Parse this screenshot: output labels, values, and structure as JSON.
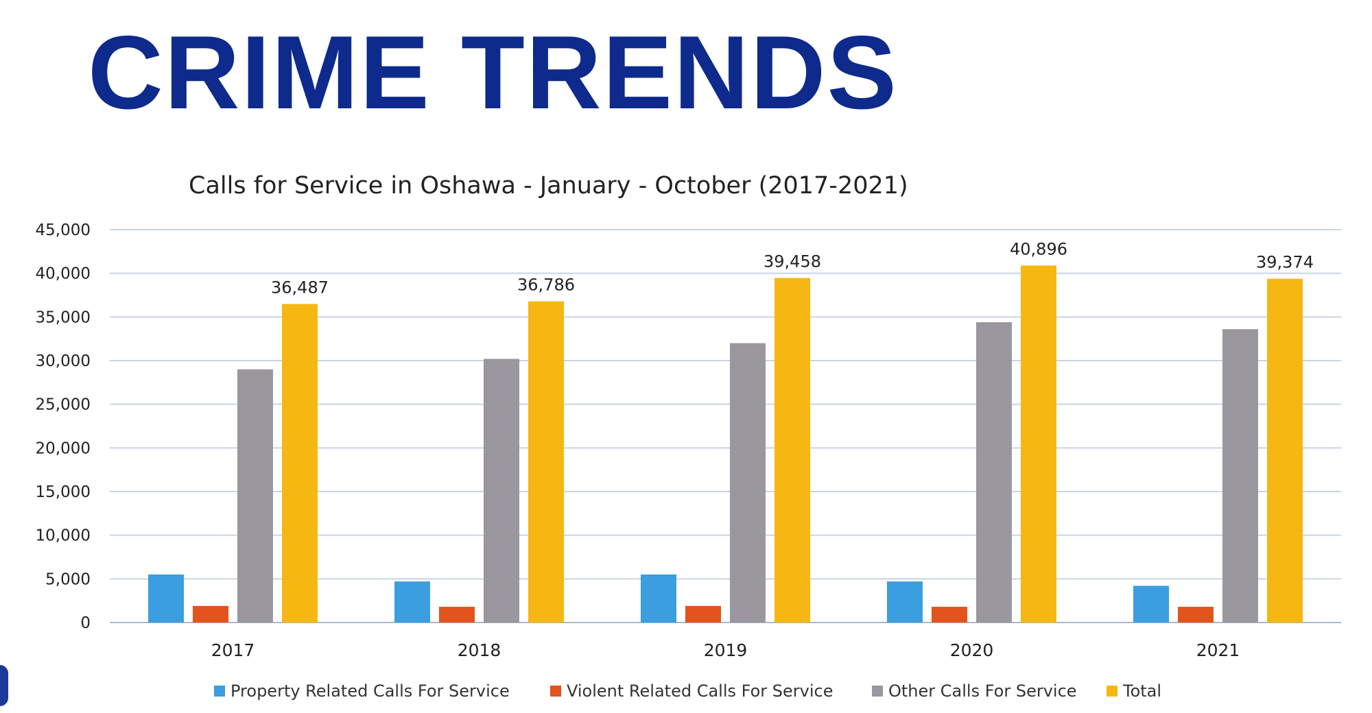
{
  "heading": "CRIME TRENDS",
  "chart_data": {
    "type": "bar",
    "title": "Calls for Service in Oshawa - January - October (2017-2021)",
    "xlabel": "",
    "ylabel": "",
    "categories": [
      "2017",
      "2018",
      "2019",
      "2020",
      "2021"
    ],
    "ylim": [
      0,
      45000
    ],
    "yticks": [
      0,
      5000,
      10000,
      15000,
      20000,
      25000,
      30000,
      35000,
      40000,
      45000
    ],
    "ytick_labels": [
      "0",
      "5,000",
      "10,000",
      "15,000",
      "20,000",
      "25,000",
      "30,000",
      "35,000",
      "40,000",
      "45,000"
    ],
    "grid": true,
    "legend_position": "bottom",
    "series": [
      {
        "name": "Property Related Calls For Service",
        "color": "#3a9ee0",
        "values": [
          5500,
          4700,
          5500,
          4700,
          4200
        ]
      },
      {
        "name": "Violent Related Calls For Service",
        "color": "#e2531d",
        "values": [
          1900,
          1800,
          1900,
          1800,
          1800
        ]
      },
      {
        "name": "Other Calls For Service",
        "color": "#9a979e",
        "values": [
          29000,
          30200,
          32000,
          34400,
          33600
        ]
      },
      {
        "name": "Total",
        "color": "#f6b712",
        "values": [
          36487,
          36786,
          39458,
          40896,
          39374
        ]
      }
    ],
    "data_labels": {
      "series": "Total",
      "labels": [
        "36,487",
        "36,786",
        "39,458",
        "40,896",
        "39,374"
      ]
    }
  }
}
